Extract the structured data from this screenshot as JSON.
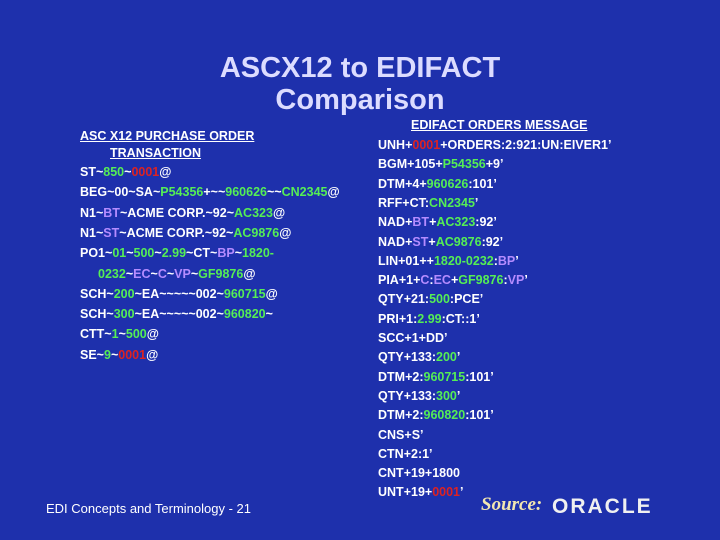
{
  "title": [
    "ASCX12 to EDIFACT",
    "Comparison"
  ],
  "left": {
    "heading": [
      "ASC X12 PURCHASE ORDER",
      "TRANSACTION"
    ],
    "lines": [
      [
        {
          "text": "ST~"
        },
        {
          "text": "850",
          "color": "#55ee55"
        },
        {
          "text": "~"
        },
        {
          "text": "0001",
          "color": "#dd2222"
        },
        {
          "text": "@"
        }
      ],
      [
        {
          "text": "BEG~00~SA~"
        },
        {
          "text": "P54356",
          "color": "#55ee55"
        },
        {
          "text": "+~~"
        },
        {
          "text": "960626",
          "color": "#55ee55"
        },
        {
          "text": "~~"
        },
        {
          "text": "CN2345",
          "color": "#55ee55"
        },
        {
          "text": "@"
        }
      ],
      [
        {
          "text": "N1~"
        },
        {
          "text": "BT",
          "color": "#b58cff"
        },
        {
          "text": "~ACME CORP.~92~"
        },
        {
          "text": "AC323",
          "color": "#55ee55"
        },
        {
          "text": "@"
        }
      ],
      [
        {
          "text": "N1~"
        },
        {
          "text": "ST",
          "color": "#b58cff"
        },
        {
          "text": "~ACME CORP.~92~"
        },
        {
          "text": "AC9876",
          "color": "#55ee55"
        },
        {
          "text": "@"
        }
      ],
      [
        {
          "text": "PO1~"
        },
        {
          "text": "01",
          "color": "#55ee55"
        },
        {
          "text": "~"
        },
        {
          "text": "500",
          "color": "#55ee55"
        },
        {
          "text": "~"
        },
        {
          "text": "2.99",
          "color": "#55ee55"
        },
        {
          "text": "~CT~"
        },
        {
          "text": "BP",
          "color": "#b58cff"
        },
        {
          "text": "~"
        },
        {
          "text": "1820-",
          "color": "#55ee55"
        }
      ],
      [
        {
          "text": "0232",
          "color": "#55ee55"
        },
        {
          "text": "~"
        },
        {
          "text": "EC",
          "color": "#b58cff"
        },
        {
          "text": "~"
        },
        {
          "text": "C",
          "color": "#b58cff"
        },
        {
          "text": "~"
        },
        {
          "text": "VP",
          "color": "#b58cff"
        },
        {
          "text": "~"
        },
        {
          "text": "GF9876",
          "color": "#55ee55"
        },
        {
          "text": "@"
        }
      ],
      [
        {
          "text": "SCH~"
        },
        {
          "text": "200",
          "color": "#55ee55"
        },
        {
          "text": "~EA~~~~~002~"
        },
        {
          "text": "960715",
          "color": "#55ee55"
        },
        {
          "text": "@"
        }
      ],
      [
        {
          "text": "SCH~"
        },
        {
          "text": "300",
          "color": "#55ee55"
        },
        {
          "text": "~EA~~~~~002~"
        },
        {
          "text": "960820",
          "color": "#55ee55"
        },
        {
          "text": "~"
        }
      ],
      [
        {
          "text": "CTT~"
        },
        {
          "text": "1",
          "color": "#55ee55"
        },
        {
          "text": "~"
        },
        {
          "text": "500",
          "color": "#55ee55"
        },
        {
          "text": "@"
        }
      ],
      [
        {
          "text": "SE~"
        },
        {
          "text": "9",
          "color": "#55ee55"
        },
        {
          "text": "~"
        },
        {
          "text": "0001",
          "color": "#dd2222"
        },
        {
          "text": "@"
        }
      ]
    ]
  },
  "right": {
    "heading": "EDIFACT ORDERS MESSAGE",
    "lines": [
      [
        {
          "text": "UNH+"
        },
        {
          "text": "0001",
          "color": "#dd2222"
        },
        {
          "text": "+ORDERS:2:921:UN:EIVER1’"
        }
      ],
      [
        {
          "text": "BGM+105+"
        },
        {
          "text": "P54356",
          "color": "#55ee55"
        },
        {
          "text": "+9’"
        }
      ],
      [
        {
          "text": "DTM+4+"
        },
        {
          "text": "960626",
          "color": "#55ee55"
        },
        {
          "text": ":101’"
        }
      ],
      [
        {
          "text": "RFF+CT:"
        },
        {
          "text": "CN2345",
          "color": "#55ee55"
        },
        {
          "text": "’"
        }
      ],
      [
        {
          "text": "NAD+"
        },
        {
          "text": "BT",
          "color": "#b58cff"
        },
        {
          "text": "+"
        },
        {
          "text": "AC323",
          "color": "#55ee55"
        },
        {
          "text": ":92’"
        }
      ],
      [
        {
          "text": "NAD+"
        },
        {
          "text": "ST",
          "color": "#b58cff"
        },
        {
          "text": "+"
        },
        {
          "text": "AC9876",
          "color": "#55ee55"
        },
        {
          "text": ":92’"
        }
      ],
      [
        {
          "text": "LIN+01++"
        },
        {
          "text": "1820-0232",
          "color": "#55ee55"
        },
        {
          "text": ":"
        },
        {
          "text": "BP",
          "color": "#b58cff"
        },
        {
          "text": "’"
        }
      ],
      [
        {
          "text": "PIA+1+"
        },
        {
          "text": "C",
          "color": "#b58cff"
        },
        {
          "text": ":"
        },
        {
          "text": "EC",
          "color": "#b58cff"
        },
        {
          "text": "+"
        },
        {
          "text": "GF9876",
          "color": "#55ee55"
        },
        {
          "text": ":"
        },
        {
          "text": "VP",
          "color": "#b58cff"
        },
        {
          "text": "’"
        }
      ],
      [
        {
          "text": "QTY+21:"
        },
        {
          "text": "500",
          "color": "#55ee55"
        },
        {
          "text": ":PCE’"
        }
      ],
      [
        {
          "text": "PRI+1:"
        },
        {
          "text": "2.99",
          "color": "#55ee55"
        },
        {
          "text": ":CT::1’"
        }
      ],
      [
        {
          "text": "SCC+1+DD’"
        }
      ],
      [
        {
          "text": "QTY+133:"
        },
        {
          "text": "200",
          "color": "#55ee55"
        },
        {
          "text": "’"
        }
      ],
      [
        {
          "text": "DTM+2:"
        },
        {
          "text": "960715",
          "color": "#55ee55"
        },
        {
          "text": ":101’"
        }
      ],
      [
        {
          "text": "QTY+133:"
        },
        {
          "text": "300",
          "color": "#55ee55"
        },
        {
          "text": "’"
        }
      ],
      [
        {
          "text": "DTM+2:"
        },
        {
          "text": "960820",
          "color": "#55ee55"
        },
        {
          "text": ":101’"
        }
      ],
      [
        {
          "text": "CNS+S’"
        }
      ],
      [
        {
          "text": "CTN+2:1’"
        }
      ],
      [
        {
          "text": "CNT+19+1800"
        }
      ],
      [
        {
          "text": "UNT+19+"
        },
        {
          "text": "0001",
          "color": "#dd2222"
        },
        {
          "text": "’"
        }
      ]
    ]
  },
  "footer": {
    "caption": "EDI Concepts and Terminology  - 21",
    "source": "Source:",
    "logo": "ORACLE"
  }
}
